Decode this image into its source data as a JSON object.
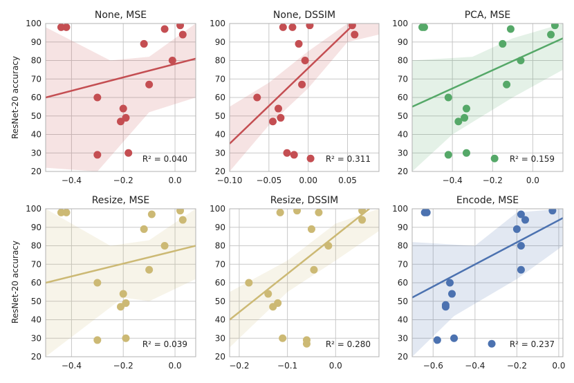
{
  "figure": {
    "ylabel": "ResNet-20 accuracy"
  },
  "chart_data": [
    {
      "type": "scatter",
      "title": "None, MSE",
      "xlim": [
        -0.5,
        0.08
      ],
      "ylim": [
        20,
        100
      ],
      "xticks": [
        -0.4,
        -0.2,
        0.0
      ],
      "xtick_labels": [
        "−0.4",
        "−0.2",
        "0.0"
      ],
      "yticks": [
        20,
        30,
        40,
        50,
        60,
        70,
        80,
        90,
        100
      ],
      "color": "#c44e52",
      "r2_label": "R² = 0.040",
      "x": [
        -0.44,
        -0.42,
        -0.3,
        -0.3,
        -0.21,
        -0.2,
        -0.19,
        -0.18,
        -0.12,
        -0.1,
        -0.04,
        -0.01,
        0.02,
        0.03
      ],
      "y": [
        98,
        98,
        60,
        29,
        47,
        54,
        49,
        30,
        89,
        67,
        97,
        80,
        99,
        94
      ],
      "fit": [
        [
          -0.5,
          60
        ],
        [
          0.08,
          81
        ]
      ],
      "ci_upper": [
        [
          -0.5,
          98
        ],
        [
          -0.25,
          80
        ],
        [
          -0.1,
          82
        ],
        [
          0.08,
          100
        ]
      ],
      "ci_lower": [
        [
          -0.5,
          22
        ],
        [
          -0.3,
          20
        ],
        [
          -0.1,
          52
        ],
        [
          0.08,
          60
        ]
      ]
    },
    {
      "type": "scatter",
      "title": "None, DSSIM",
      "xlim": [
        -0.1,
        0.09
      ],
      "ylim": [
        20,
        100
      ],
      "xticks": [
        -0.1,
        -0.05,
        0.0,
        0.05
      ],
      "xtick_labels": [
        "−0.10",
        "−0.05",
        "0.00",
        "0.05"
      ],
      "yticks": [
        20,
        30,
        40,
        50,
        60,
        70,
        80,
        90,
        100
      ],
      "color": "#c44e52",
      "r2_label": "R² = 0.311",
      "x": [
        -0.065,
        -0.045,
        -0.038,
        -0.035,
        -0.032,
        -0.027,
        -0.02,
        -0.018,
        -0.012,
        -0.008,
        -0.004,
        0.002,
        0.003,
        0.056,
        0.059
      ],
      "y": [
        60,
        47,
        54,
        49,
        98,
        30,
        98,
        29,
        89,
        67,
        80,
        99,
        27,
        99,
        94
      ],
      "fit": [
        [
          -0.1,
          35
        ],
        [
          0.059,
          100
        ]
      ],
      "ci_upper": [
        [
          -0.1,
          55
        ],
        [
          -0.05,
          68
        ],
        [
          0.0,
          85
        ],
        [
          0.05,
          100
        ],
        [
          0.09,
          100
        ]
      ],
      "ci_lower": [
        [
          -0.1,
          20
        ],
        [
          -0.05,
          45
        ],
        [
          0.0,
          65
        ],
        [
          0.05,
          90
        ],
        [
          0.09,
          94
        ]
      ]
    },
    {
      "type": "scatter",
      "title": "PCA, MSE",
      "xlim": [
        -0.6,
        0.15
      ],
      "ylim": [
        20,
        100
      ],
      "xticks": [
        -0.4,
        -0.2,
        0.0
      ],
      "xtick_labels": [
        "−0.4",
        "−0.2",
        "0.0"
      ],
      "yticks": [
        20,
        30,
        40,
        50,
        60,
        70,
        80,
        90,
        100
      ],
      "color": "#55a868",
      "r2_label": "R² = 0.159",
      "x": [
        -0.55,
        -0.54,
        -0.42,
        -0.42,
        -0.37,
        -0.34,
        -0.33,
        -0.33,
        -0.19,
        -0.15,
        -0.13,
        -0.11,
        -0.06,
        0.09,
        0.11
      ],
      "y": [
        98,
        98,
        60,
        29,
        47,
        49,
        54,
        30,
        27,
        89,
        67,
        97,
        80,
        94,
        99
      ],
      "fit": [
        [
          -0.6,
          55
        ],
        [
          0.15,
          92
        ]
      ],
      "ci_upper": [
        [
          -0.6,
          80
        ],
        [
          -0.3,
          82
        ],
        [
          -0.1,
          92
        ],
        [
          0.15,
          100
        ]
      ],
      "ci_lower": [
        [
          -0.6,
          20
        ],
        [
          -0.4,
          40
        ],
        [
          -0.1,
          60
        ],
        [
          0.15,
          75
        ]
      ]
    },
    {
      "type": "scatter",
      "title": "Resize, MSE",
      "xlim": [
        -0.5,
        0.08
      ],
      "ylim": [
        20,
        100
      ],
      "xticks": [
        -0.4,
        -0.2,
        0.0
      ],
      "xtick_labels": [
        "−0.4",
        "−0.2",
        "0.0"
      ],
      "yticks": [
        20,
        30,
        40,
        50,
        60,
        70,
        80,
        90,
        100
      ],
      "color": "#ccb974",
      "r2_label": "R² = 0.039",
      "x": [
        -0.44,
        -0.42,
        -0.3,
        -0.3,
        -0.21,
        -0.2,
        -0.19,
        -0.19,
        -0.12,
        -0.1,
        -0.09,
        -0.04,
        0.02,
        0.03
      ],
      "y": [
        98,
        98,
        60,
        29,
        47,
        54,
        49,
        30,
        89,
        67,
        97,
        80,
        99,
        94
      ],
      "fit": [
        [
          -0.5,
          60
        ],
        [
          0.08,
          80
        ]
      ],
      "ci_upper": [
        [
          -0.5,
          100
        ],
        [
          -0.25,
          80
        ],
        [
          -0.1,
          83
        ],
        [
          0.08,
          100
        ]
      ],
      "ci_lower": [
        [
          -0.5,
          20
        ],
        [
          -0.2,
          52
        ],
        [
          -0.1,
          50
        ],
        [
          0.08,
          62
        ]
      ]
    },
    {
      "type": "scatter",
      "title": "Resize, DSSIM",
      "xlim": [
        -0.22,
        0.09
      ],
      "ylim": [
        20,
        100
      ],
      "xticks": [
        -0.2,
        -0.1,
        0.0
      ],
      "xtick_labels": [
        "−0.2",
        "−0.1",
        "0.0"
      ],
      "yticks": [
        20,
        30,
        40,
        50,
        60,
        70,
        80,
        90,
        100
      ],
      "color": "#ccb974",
      "r2_label": "R² = 0.280",
      "x": [
        -0.18,
        -0.14,
        -0.13,
        -0.12,
        -0.115,
        -0.11,
        -0.08,
        -0.06,
        -0.06,
        -0.05,
        -0.045,
        -0.035,
        -0.015,
        0.055,
        0.055
      ],
      "y": [
        60,
        54,
        47,
        49,
        98,
        30,
        99,
        27,
        29,
        89,
        67,
        98,
        80,
        99,
        94
      ],
      "fit": [
        [
          -0.22,
          40
        ],
        [
          0.07,
          100
        ]
      ],
      "ci_upper": [
        [
          -0.22,
          55
        ],
        [
          -0.1,
          72
        ],
        [
          0.0,
          92
        ],
        [
          0.09,
          100
        ]
      ],
      "ci_lower": [
        [
          -0.22,
          25
        ],
        [
          -0.1,
          55
        ],
        [
          0.0,
          72
        ],
        [
          0.09,
          88
        ]
      ]
    },
    {
      "type": "scatter",
      "title": "Encode, MSE",
      "xlim": [
        -0.7,
        0.02
      ],
      "ylim": [
        20,
        100
      ],
      "xticks": [
        -0.6,
        -0.4,
        -0.2,
        0.0
      ],
      "xtick_labels": [
        "−0.6",
        "−0.4",
        "−0.2",
        "0.0"
      ],
      "yticks": [
        20,
        30,
        40,
        50,
        60,
        70,
        80,
        90,
        100
      ],
      "color": "#4c72b0",
      "r2_label": "R² = 0.237",
      "x": [
        -0.64,
        -0.63,
        -0.58,
        -0.54,
        -0.54,
        -0.52,
        -0.51,
        -0.5,
        -0.32,
        -0.2,
        -0.18,
        -0.18,
        -0.18,
        -0.16,
        -0.03
      ],
      "y": [
        98,
        98,
        29,
        47,
        48,
        60,
        54,
        30,
        27,
        89,
        97,
        80,
        67,
        94,
        99
      ],
      "fit": [
        [
          -0.7,
          52
        ],
        [
          0.02,
          95
        ]
      ],
      "ci_upper": [
        [
          -0.7,
          82
        ],
        [
          -0.4,
          80
        ],
        [
          -0.2,
          98
        ],
        [
          0.02,
          100
        ]
      ],
      "ci_lower": [
        [
          -0.7,
          20
        ],
        [
          -0.5,
          42
        ],
        [
          -0.2,
          62
        ],
        [
          0.02,
          80
        ]
      ]
    }
  ]
}
